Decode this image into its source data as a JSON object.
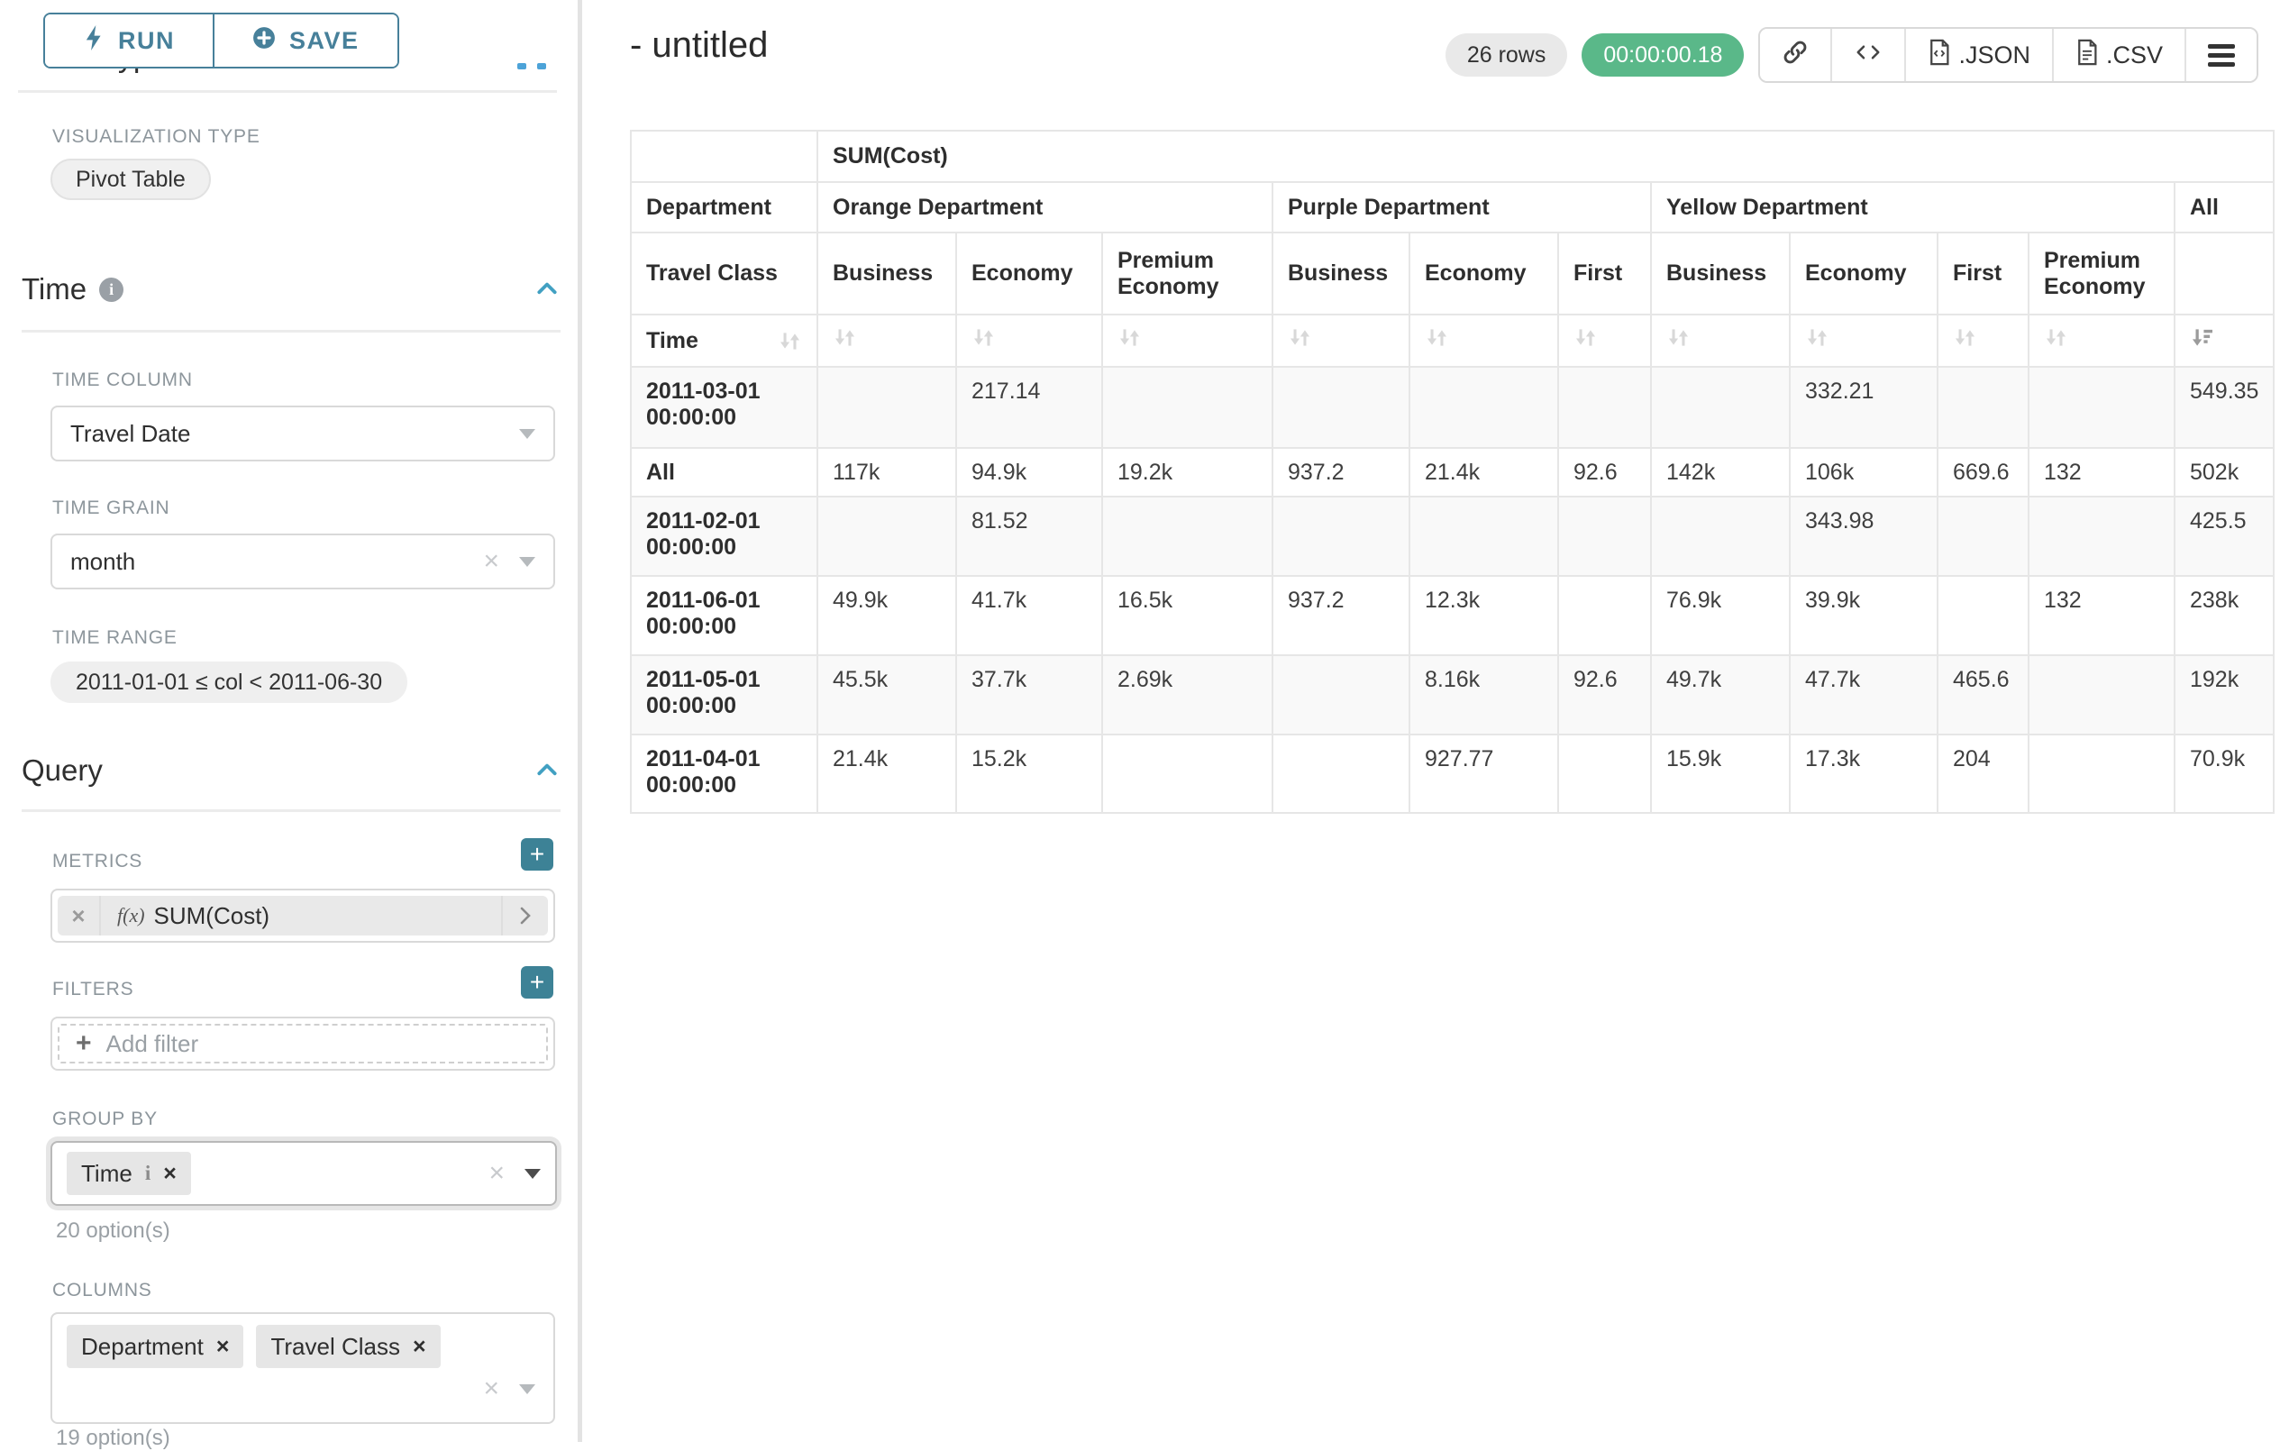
{
  "colors": {
    "teal": "#47809a",
    "teal_button": "#3d8296",
    "green_badge": "#5ab889",
    "blue_chevron": "#41a0c2"
  },
  "sidebar": {
    "topbar": {
      "run_label": "RUN",
      "save_label": "SAVE"
    },
    "chart_type_heading": "Chart Type",
    "visualization": {
      "label": "VISUALIZATION TYPE",
      "value": "Pivot Table"
    },
    "time": {
      "title": "Time",
      "time_column": {
        "label": "TIME COLUMN",
        "value": "Travel Date"
      },
      "time_grain": {
        "label": "TIME GRAIN",
        "value": "month"
      },
      "time_range": {
        "label": "TIME RANGE",
        "value": "2011-01-01 ≤ col < 2011-06-30"
      }
    },
    "query": {
      "title": "Query",
      "metrics": {
        "label": "METRICS",
        "chip": {
          "fx": "f(x)",
          "name": "SUM(Cost)"
        }
      },
      "filters": {
        "label": "FILTERS",
        "placeholder": "Add filter"
      },
      "group_by": {
        "label": "GROUP BY",
        "chips": [
          {
            "label": "Time"
          }
        ],
        "hint": "20 option(s)"
      },
      "columns": {
        "label": "COLUMNS",
        "chips": [
          {
            "label": "Department"
          },
          {
            "label": "Travel Class"
          }
        ],
        "hint": "19 option(s)"
      }
    }
  },
  "main": {
    "title": "- untitled",
    "row_count": "26 rows",
    "timer": "00:00:00.18",
    "actions": {
      "json_label": ".JSON",
      "csv_label": ".CSV"
    },
    "table": {
      "metric_header": "SUM(Cost)",
      "dept_header": "Department",
      "class_header": "Travel Class",
      "time_header": "Time",
      "column_groups": [
        {
          "name": "Orange Department",
          "classes": [
            "Business",
            "Economy",
            "Premium Economy"
          ]
        },
        {
          "name": "Purple Department",
          "classes": [
            "Business",
            "Economy",
            "First"
          ]
        },
        {
          "name": "Yellow Department",
          "classes": [
            "Business",
            "Economy",
            "First",
            "Premium Economy"
          ]
        },
        {
          "name": "All",
          "classes": [
            ""
          ]
        }
      ],
      "sort": {
        "column": "All",
        "direction": "desc"
      },
      "rows": [
        {
          "time": "2011-03-01 00:00:00",
          "values": [
            "",
            "217.14",
            "",
            "",
            "",
            "",
            "",
            "332.21",
            "",
            "",
            "549.35"
          ]
        },
        {
          "time": "All",
          "values": [
            "117k",
            "94.9k",
            "19.2k",
            "937.2",
            "21.4k",
            "92.6",
            "142k",
            "106k",
            "669.6",
            "132",
            "502k"
          ]
        },
        {
          "time": "2011-02-01 00:00:00",
          "values": [
            "",
            "81.52",
            "",
            "",
            "",
            "",
            "",
            "343.98",
            "",
            "",
            "425.5"
          ]
        },
        {
          "time": "2011-06-01 00:00:00",
          "values": [
            "49.9k",
            "41.7k",
            "16.5k",
            "937.2",
            "12.3k",
            "",
            "76.9k",
            "39.9k",
            "",
            "132",
            "238k"
          ]
        },
        {
          "time": "2011-05-01 00:00:00",
          "values": [
            "45.5k",
            "37.7k",
            "2.69k",
            "",
            "8.16k",
            "92.6",
            "49.7k",
            "47.7k",
            "465.6",
            "",
            "192k"
          ]
        },
        {
          "time": "2011-04-01 00:00:00",
          "values": [
            "21.4k",
            "15.2k",
            "",
            "",
            "927.77",
            "",
            "15.9k",
            "17.3k",
            "204",
            "",
            "70.9k"
          ]
        }
      ]
    }
  }
}
